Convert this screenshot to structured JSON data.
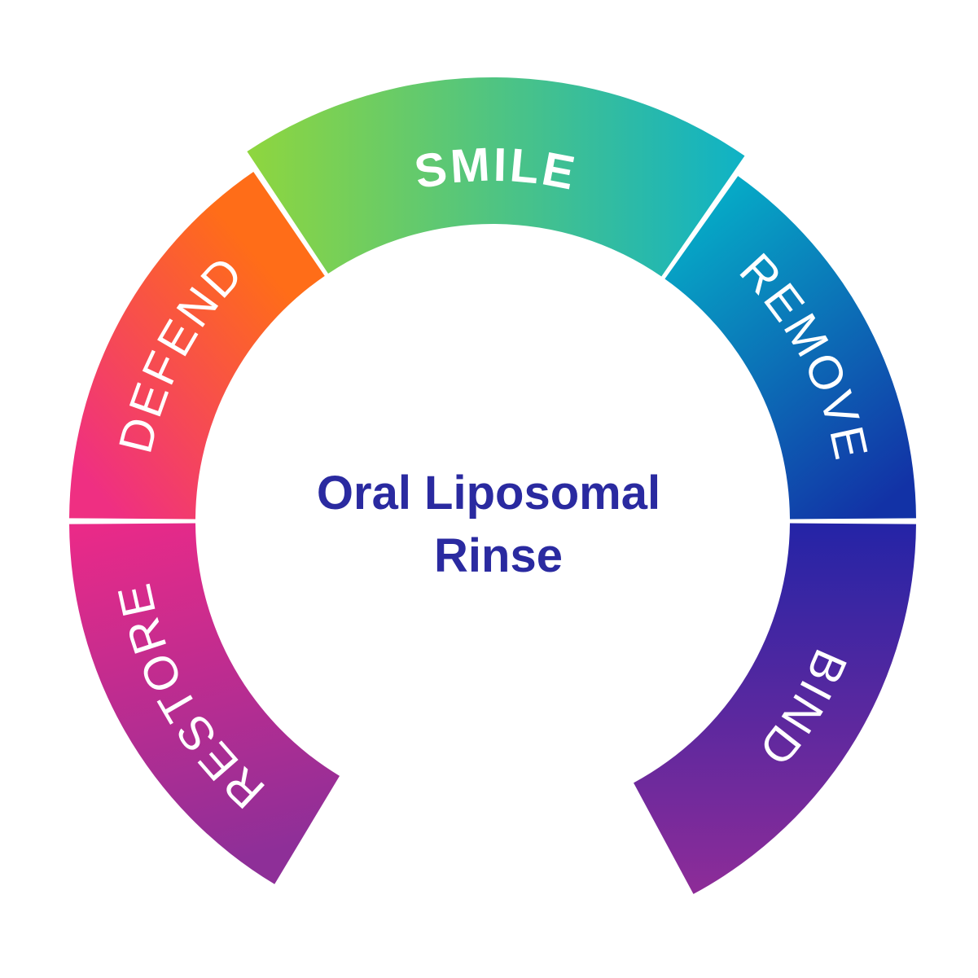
{
  "center": {
    "line1": "Oral Liposomal",
    "line2": "Rinse",
    "color": "#2a2aa0"
  },
  "segments": [
    {
      "label": "RESTORE",
      "colors": [
        "#8e2f98",
        "#ea2a88"
      ]
    },
    {
      "label": "DEFEND",
      "colors": [
        "#ef2f82",
        "#ff6d18"
      ]
    },
    {
      "label": "SMILE",
      "colors": [
        "#8fd63e",
        "#0fb2c6"
      ]
    },
    {
      "label": "REMOVE",
      "colors": [
        "#05b0c8",
        "#1232a6"
      ]
    },
    {
      "label": "BIND",
      "colors": [
        "#2424a6",
        "#8e2c98"
      ]
    }
  ]
}
